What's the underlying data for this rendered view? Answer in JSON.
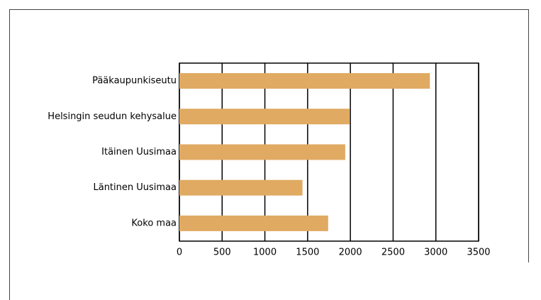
{
  "chart_data": {
    "type": "bar",
    "orientation": "horizontal",
    "categories": [
      "Pääkaupunkiseutu",
      "Helsingin seudun kehysalue",
      "Itäinen Uusimaa",
      "Läntinen Uusimaa",
      "Koko maa"
    ],
    "values": [
      2930,
      1990,
      1940,
      1440,
      1740
    ],
    "color": "#e0aa62",
    "xlim": [
      0,
      3500
    ],
    "xticks": [
      0,
      500,
      1000,
      1500,
      2000,
      2500,
      3000,
      3500
    ],
    "grid": true
  }
}
